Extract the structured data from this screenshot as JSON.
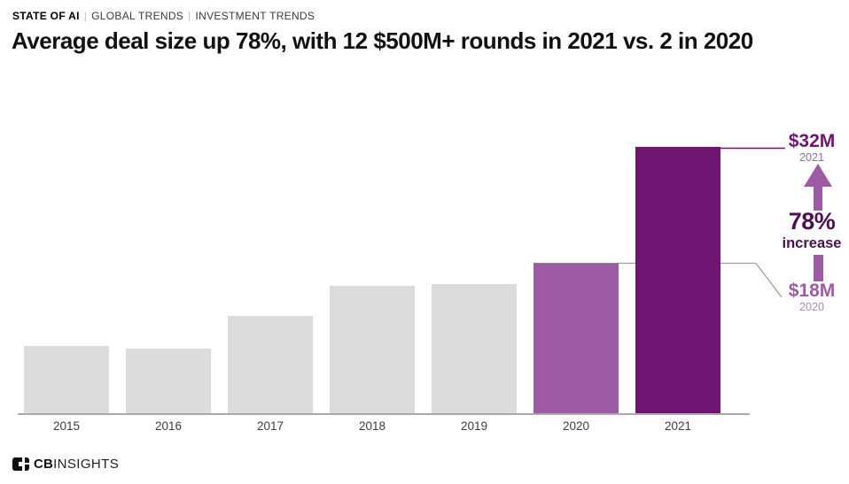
{
  "header": {
    "kicker": {
      "brand": "STATE OF AI",
      "separator": "|",
      "sections": [
        "GLOBAL TRENDS",
        "INVESTMENT TRENDS"
      ]
    },
    "title": "Average deal size up 78%, with 12 $500M+ rounds in 2021 vs. 2 in 2020"
  },
  "chart_data": {
    "type": "bar",
    "categories": [
      "2015",
      "2016",
      "2017",
      "2018",
      "2019",
      "2020",
      "2021"
    ],
    "values": [
      8.2,
      7.8,
      11.8,
      15.4,
      15.6,
      18,
      32
    ],
    "unit": "$M",
    "ylim": [
      0,
      32
    ],
    "grid": false,
    "legend": "none",
    "title": "Average deal size up 78%, with 12 $500M+ rounds in 2021 vs. 2 in 2020",
    "xlabel": "",
    "ylabel": "",
    "value_notes": "2015-2019 values estimated from bar heights; 2020 and 2021 labeled on chart",
    "bar_colors": [
      "#dcdcdc",
      "#dcdcdc",
      "#dcdcdc",
      "#dcdcdc",
      "#dcdcdc",
      "#9d5ba4",
      "#6e1572"
    ],
    "annotations": {
      "value_2021": "$32M",
      "year_2021": "2021",
      "pct": "78%",
      "pct_label": "increase",
      "value_2020": "$18M",
      "year_2020": "2020"
    }
  },
  "theme": {
    "purple_dark": "#6e1572",
    "purple_mid": "#9d5ba4",
    "plum_text": "#4a1150",
    "bar_gray": "#dcdcdc",
    "axis_gray": "#a9a9a9",
    "connector_gray": "#a39aa5"
  },
  "footer": {
    "logo_bold": "CB",
    "logo_light": "INSIGHTS"
  }
}
